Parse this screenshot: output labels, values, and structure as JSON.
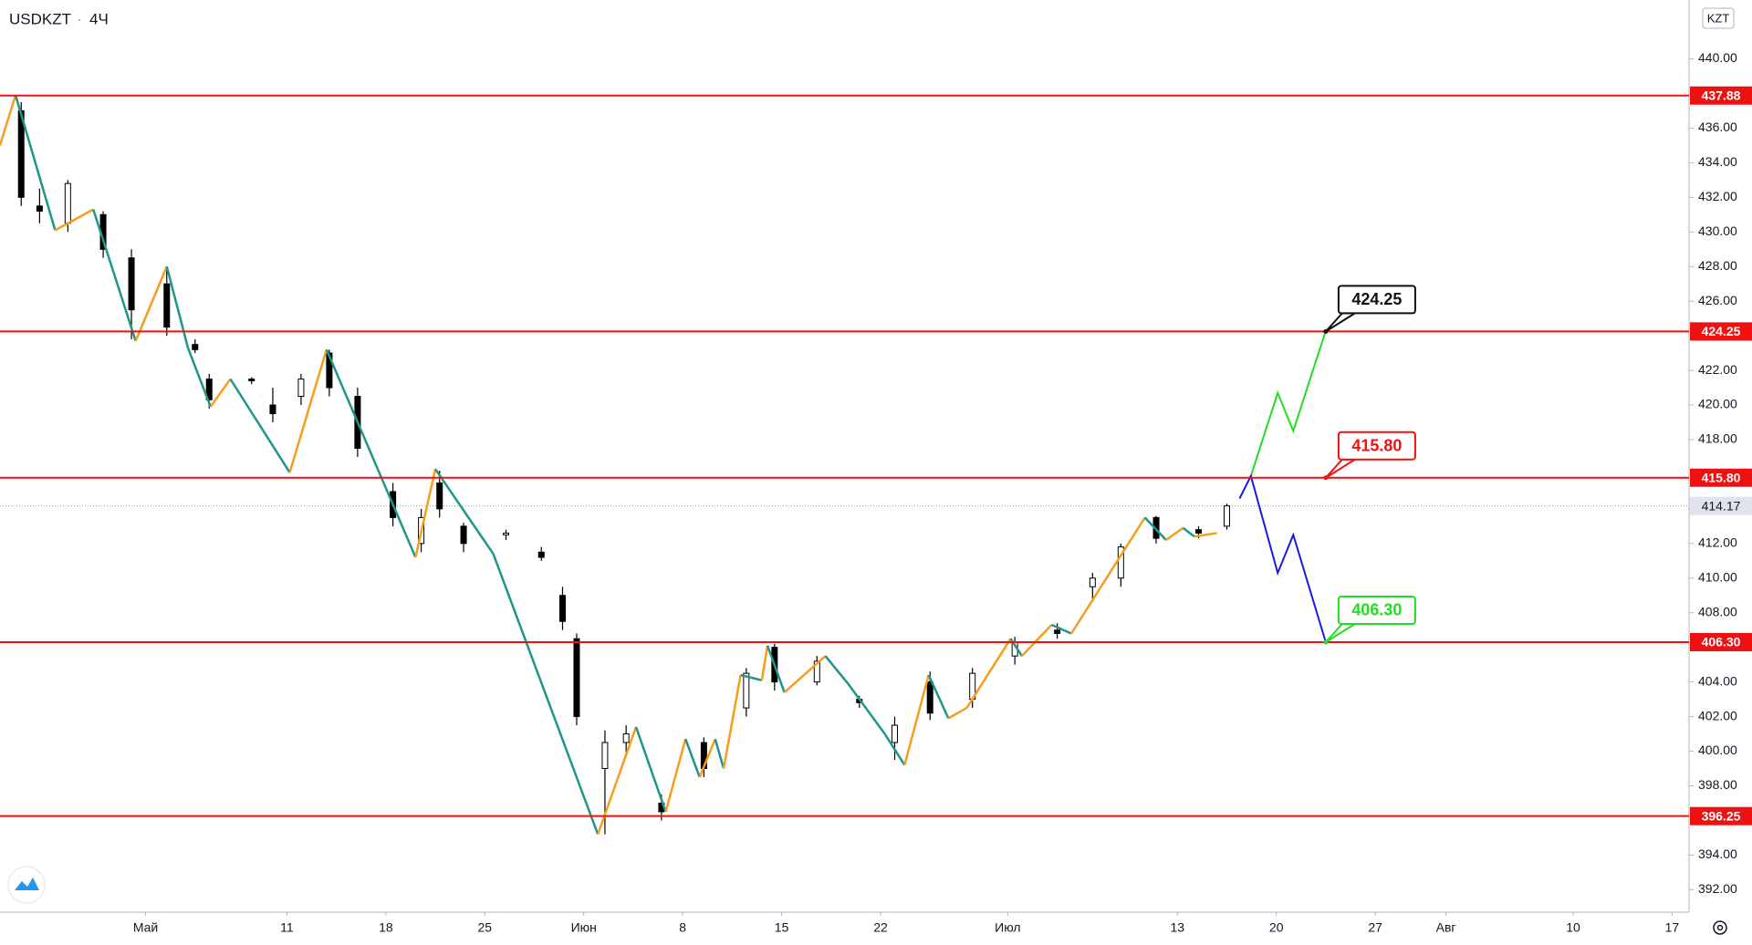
{
  "chart_data": {
    "type": "candlestick",
    "symbol": "USDKZT",
    "interval": "4Ч",
    "currency": "KZT",
    "xlim": [
      111.7,
      231.2
    ],
    "ylim": [
      390.7,
      443.4
    ],
    "xticks": [
      {
        "value": 122,
        "label": "Май"
      },
      {
        "value": 132,
        "label": "11"
      },
      {
        "value": 139,
        "label": "18"
      },
      {
        "value": 146,
        "label": "25"
      },
      {
        "value": 153,
        "label": "Июн"
      },
      {
        "value": 160,
        "label": "8"
      },
      {
        "value": 167,
        "label": "15"
      },
      {
        "value": 174,
        "label": "22"
      },
      {
        "value": 183,
        "label": "Июл"
      },
      {
        "value": 195,
        "label": "13"
      },
      {
        "value": 202,
        "label": "20"
      },
      {
        "value": 209,
        "label": "27"
      },
      {
        "value": 214,
        "label": "Авг"
      },
      {
        "value": 223,
        "label": "10"
      },
      {
        "value": 230,
        "label": "17"
      }
    ],
    "yticks": [
      {
        "value": 392,
        "label": "392.00"
      },
      {
        "value": 394,
        "label": "394.00"
      },
      {
        "value": 396,
        "label": "396.00"
      },
      {
        "value": 398,
        "label": "398.00"
      },
      {
        "value": 400,
        "label": "400.00"
      },
      {
        "value": 402,
        "label": "402.00"
      },
      {
        "value": 404,
        "label": "404.00"
      },
      {
        "value": 406,
        "label": "406.00"
      },
      {
        "value": 408,
        "label": "408.00"
      },
      {
        "value": 410,
        "label": "410.00"
      },
      {
        "value": 412,
        "label": "412.00"
      },
      {
        "value": 414,
        "label": "414.00"
      },
      {
        "value": 416,
        "label": "416.00"
      },
      {
        "value": 418,
        "label": "418.00"
      },
      {
        "value": 420,
        "label": "420.00"
      },
      {
        "value": 422,
        "label": "422.00"
      },
      {
        "value": 424,
        "label": "424.00"
      },
      {
        "value": 426,
        "label": "426.00"
      },
      {
        "value": 428,
        "label": "428.00"
      },
      {
        "value": 430,
        "label": "430.00"
      },
      {
        "value": 432,
        "label": "432.00"
      },
      {
        "value": 434,
        "label": "434.00"
      },
      {
        "value": 436,
        "label": "436.00"
      },
      {
        "value": 438,
        "label": "438.00"
      },
      {
        "value": 440,
        "label": "440.00"
      }
    ],
    "candles": {
      "x": [
        113.2,
        114.5,
        116.5,
        119.0,
        121.0,
        123.5,
        125.5,
        126.5,
        129.5,
        131.0,
        133.0,
        135.0,
        137.0,
        139.5,
        141.5,
        142.8,
        144.5,
        147.5,
        150.0,
        151.5,
        152.5,
        154.5,
        156.0,
        158.5,
        161.5,
        164.5,
        166.5,
        169.5,
        172.5,
        175.0,
        177.5,
        180.5,
        183.5,
        186.5,
        189.0,
        191.0,
        193.5,
        196.5,
        198.5
      ],
      "open": [
        437.0,
        431.5,
        430.5,
        431.0,
        428.5,
        427.0,
        423.5,
        421.5,
        421.5,
        420.0,
        420.5,
        423.0,
        420.5,
        415.0,
        412.0,
        415.5,
        413.0,
        412.5,
        411.5,
        409.0,
        406.5,
        399.0,
        400.5,
        397.0,
        400.5,
        402.5,
        406.0,
        404.0,
        403.0,
        400.5,
        404.0,
        403.0,
        405.5,
        407.0,
        409.5,
        410.0,
        413.5,
        412.8,
        413.0
      ],
      "high": [
        437.5,
        432.5,
        433.0,
        431.2,
        429.0,
        428.0,
        423.8,
        421.8,
        421.6,
        421.0,
        421.8,
        423.2,
        421.0,
        415.5,
        414.0,
        416.2,
        413.2,
        412.8,
        411.8,
        409.5,
        406.8,
        401.2,
        401.5,
        397.5,
        400.8,
        404.8,
        406.2,
        405.5,
        403.2,
        402.0,
        404.6,
        404.8,
        406.6,
        407.4,
        410.3,
        412.0,
        413.6,
        413.0,
        414.3
      ],
      "low": [
        431.5,
        430.5,
        430.0,
        428.5,
        423.8,
        424.0,
        423.0,
        419.8,
        421.2,
        419.0,
        420.0,
        420.5,
        417.0,
        413.0,
        411.5,
        413.5,
        411.5,
        412.2,
        411.0,
        407.0,
        401.5,
        395.2,
        399.8,
        396.0,
        398.5,
        402.0,
        403.5,
        403.8,
        402.5,
        399.5,
        401.8,
        402.5,
        405.0,
        406.5,
        408.8,
        409.5,
        412.0,
        412.3,
        412.8
      ],
      "close": [
        432.0,
        431.2,
        432.8,
        429.0,
        425.5,
        424.5,
        423.2,
        420.3,
        421.4,
        419.5,
        421.5,
        421.0,
        417.5,
        413.5,
        413.5,
        414.0,
        412.0,
        412.6,
        411.2,
        407.5,
        402.0,
        400.5,
        401.0,
        396.5,
        399.0,
        404.5,
        404.0,
        405.2,
        402.8,
        401.5,
        402.2,
        404.5,
        406.3,
        406.8,
        410.0,
        411.8,
        412.3,
        412.6,
        414.17
      ]
    },
    "zigzag": {
      "up_color": "#f59e1b",
      "down_color": "#1e9688",
      "x": [
        111.7,
        112.8,
        115.6,
        118.3,
        121.3,
        123.5,
        125.0,
        126.6,
        128.0,
        132.2,
        134.8,
        141.1,
        142.5,
        146.6,
        154.0,
        156.7,
        158.8,
        160.2,
        161.2,
        162.3,
        162.9,
        164.1,
        165.6,
        166.0,
        167.2,
        170.1,
        171.7,
        174.3,
        175.7,
        177.4,
        178.8,
        180.1,
        183.2,
        184.0,
        186.1,
        187.5,
        192.7,
        194.2,
        195.4,
        196.2,
        197.8
      ],
      "y": [
        435.0,
        437.9,
        430.1,
        431.3,
        423.7,
        428.0,
        423.3,
        419.9,
        421.5,
        416.1,
        423.2,
        411.2,
        416.3,
        411.4,
        395.2,
        401.4,
        396.5,
        400.7,
        398.5,
        400.7,
        399.0,
        404.4,
        404.1,
        406.1,
        403.4,
        405.5,
        403.9,
        401.0,
        399.2,
        404.4,
        401.9,
        402.5,
        406.5,
        405.5,
        407.3,
        406.8,
        413.5,
        412.2,
        412.9,
        412.4,
        412.6
      ]
    },
    "projections": [
      {
        "color": "#22dd22",
        "x": [
          200.2,
          202.1,
          203.2,
          205.5
        ],
        "y": [
          415.9,
          420.7,
          418.5,
          424.3
        ]
      },
      {
        "color": "#1a1ae0",
        "x": [
          199.4,
          200.2,
          202.1,
          203.2,
          205.5
        ],
        "y": [
          414.6,
          415.9,
          410.3,
          412.5,
          406.3
        ]
      }
    ],
    "levels": {
      "color": "#ee1111",
      "values": [
        {
          "value": 437.88,
          "label": "437.88"
        },
        {
          "value": 424.25,
          "label": "424.25"
        },
        {
          "value": 415.8,
          "label": "415.80"
        },
        {
          "value": 406.3,
          "label": "406.30"
        },
        {
          "value": 396.25,
          "label": "396.25"
        }
      ]
    },
    "last_price": 414.17,
    "callouts": [
      {
        "label": "424.25",
        "value": 424.25,
        "x": 205.5,
        "color": "#111111"
      },
      {
        "label": "415.80",
        "value": 415.8,
        "x": 205.5,
        "color": "#ee1111"
      },
      {
        "label": "406.30",
        "value": 406.3,
        "x": 205.5,
        "color": "#22dd22"
      }
    ]
  }
}
